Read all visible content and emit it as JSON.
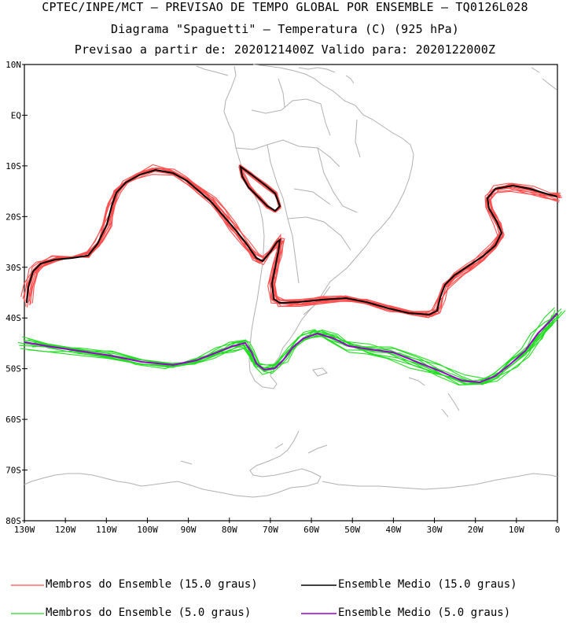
{
  "titles": {
    "line1": "CPTEC/INPE/MCT – PREVISAO DE TEMPO GLOBAL POR ENSEMBLE – TQ0126L028",
    "line2": "Diagrama \"Spaguetti\" – Temperatura (C) (925 hPa)",
    "line3": "Previsao a partir de: 2020121400Z  Valido para: 2020122000Z"
  },
  "axes": {
    "lat_labels": [
      "10N",
      "EQ",
      "10S",
      "20S",
      "30S",
      "40S",
      "50S",
      "60S",
      "70S",
      "80S"
    ],
    "lon_labels": [
      "130W",
      "120W",
      "110W",
      "100W",
      "90W",
      "80W",
      "70W",
      "60W",
      "50W",
      "40W",
      "30W",
      "20W",
      "10W",
      "0"
    ]
  },
  "legend": [
    {
      "label": "Membros do Ensemble (15.0 graus)",
      "color": "#ff4d4d"
    },
    {
      "label": "Ensemble Medio (15.0 graus)",
      "color": "#000000"
    },
    {
      "label": "Membros do Ensemble (5.0 graus)",
      "color": "#22dd22"
    },
    {
      "label": "Ensemble Medio (5.0 graus)",
      "color": "#9900cc"
    }
  ],
  "colors": {
    "coast": "#b0b0b0",
    "member15": "#ff4d4d",
    "mean15": "#000000",
    "member5": "#22dd22",
    "mean5": "#9900cc"
  }
}
